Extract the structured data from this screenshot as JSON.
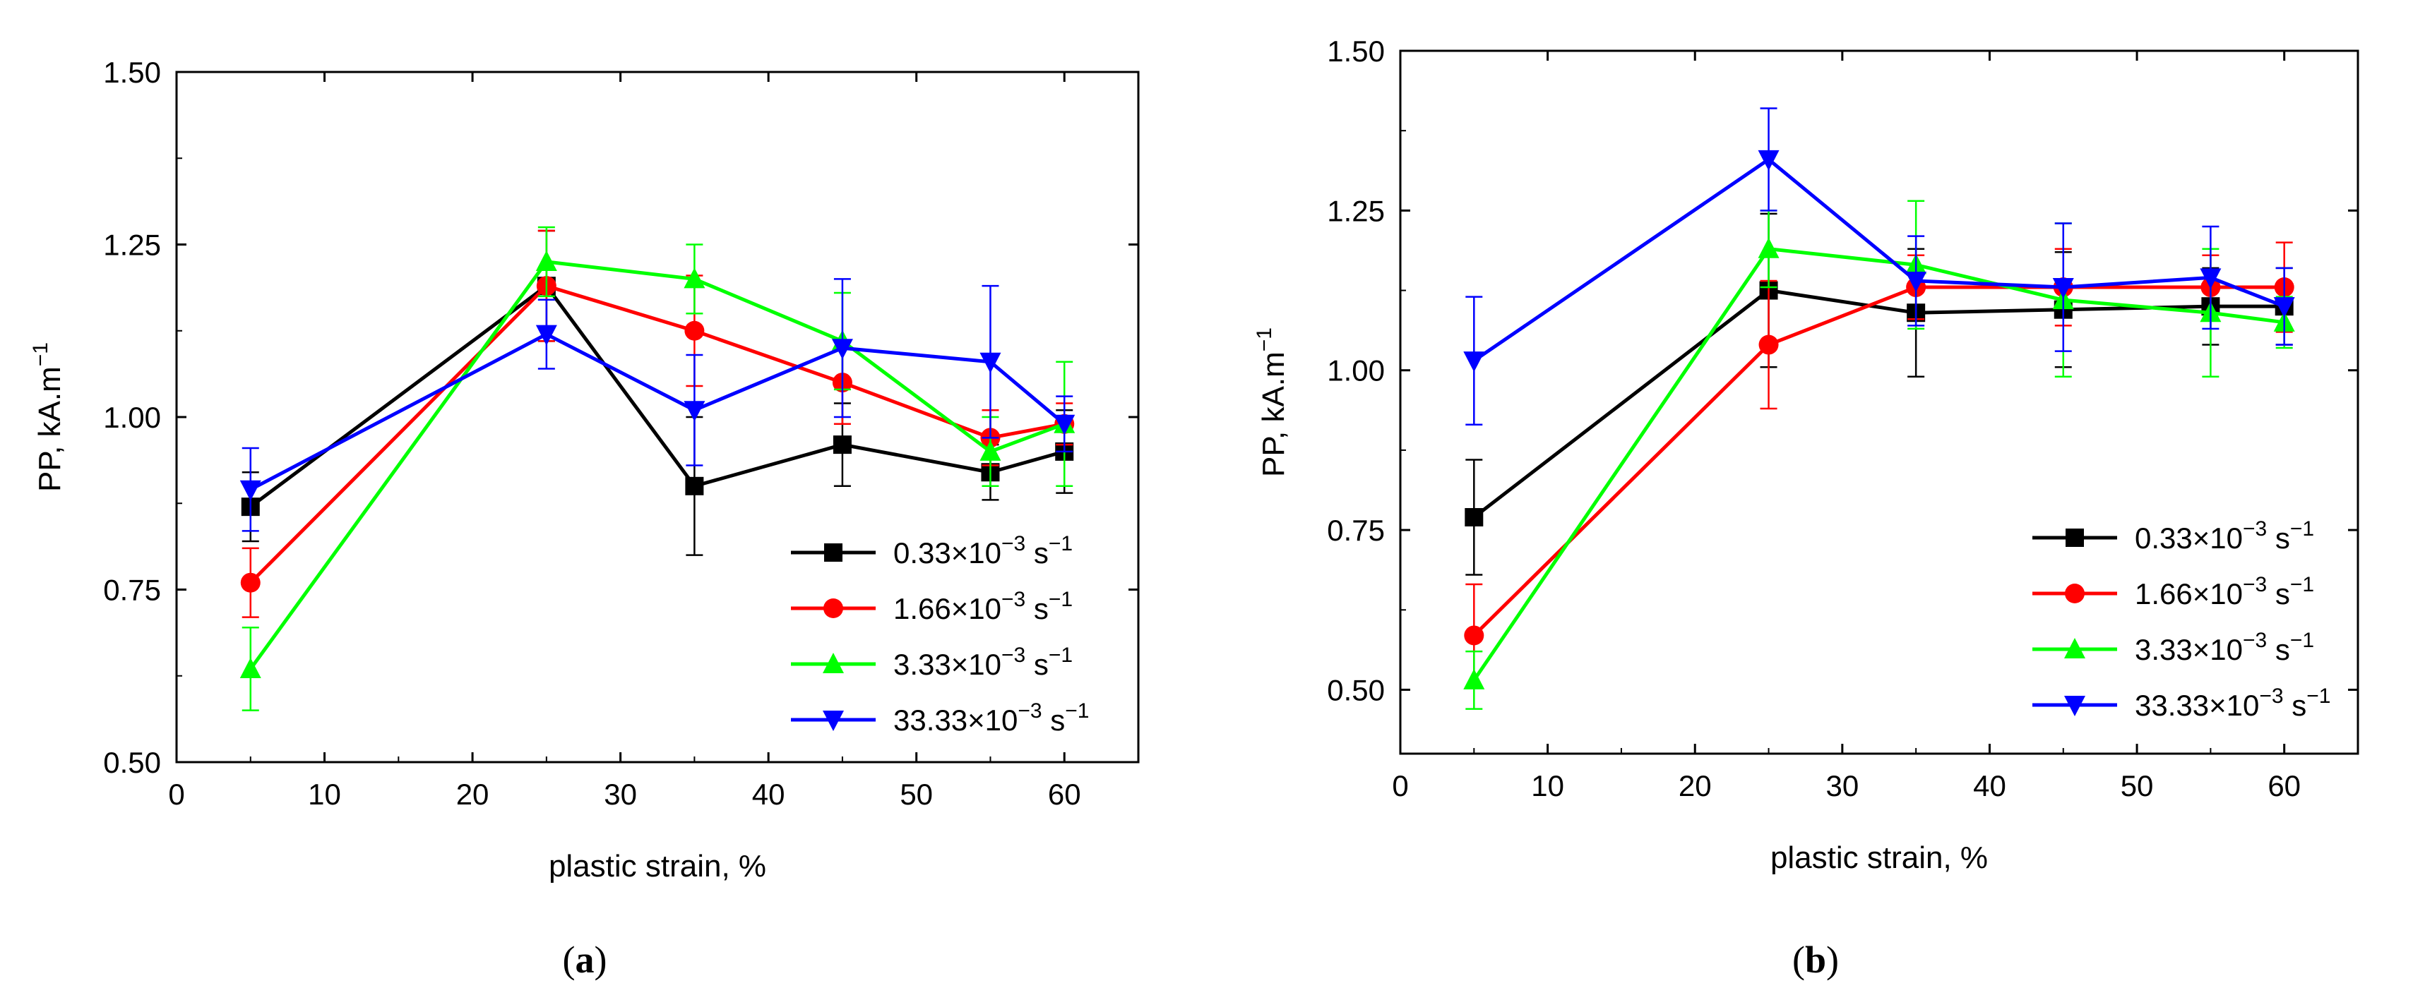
{
  "chart_data": [
    {
      "type": "line",
      "panel_label": "(a)",
      "panel_letter": "a",
      "xlabel": "plastic strain, %",
      "ylabel": "PP, kA.m",
      "ylabel_sup": "−1",
      "xlim": [
        0,
        65
      ],
      "ylim": [
        0.5,
        1.5
      ],
      "xticks": [
        "0",
        "10",
        "20",
        "30",
        "40",
        "50",
        "60"
      ],
      "yticks": [
        "0.50",
        "0.75",
        "1.00",
        "1.25",
        "1.50"
      ],
      "legend_position": "bottom-right",
      "series": [
        {
          "name": "0.33×10",
          "exp": "−3",
          "unit": "s",
          "unit_exp": "−1",
          "color": "#000000",
          "marker": "square",
          "x": [
            5,
            25,
            35,
            45,
            55,
            60
          ],
          "y": [
            0.87,
            1.19,
            0.9,
            0.96,
            0.92,
            0.95
          ],
          "err": [
            0.05,
            0.08,
            0.1,
            0.06,
            0.04,
            0.06
          ]
        },
        {
          "name": "1.66×10",
          "exp": "−3",
          "unit": "s",
          "unit_exp": "−1",
          "color": "#ff0000",
          "marker": "circle",
          "x": [
            5,
            25,
            35,
            45,
            55,
            60
          ],
          "y": [
            0.76,
            1.19,
            1.125,
            1.05,
            0.97,
            0.99
          ],
          "err": [
            0.05,
            0.08,
            0.08,
            0.06,
            0.04,
            0.03
          ]
        },
        {
          "name": "3.33×10",
          "exp": "−3",
          "unit": "s",
          "unit_exp": "−1",
          "color": "#00ff00",
          "marker": "triangle-up",
          "x": [
            5,
            25,
            35,
            45,
            55,
            60
          ],
          "y": [
            0.635,
            1.225,
            1.2,
            1.11,
            0.95,
            0.99
          ],
          "err": [
            0.06,
            0.05,
            0.05,
            0.07,
            0.05,
            0.09
          ]
        },
        {
          "name": "33.33×10",
          "exp": "−3",
          "unit": "s",
          "unit_exp": "−1",
          "color": "#0000ff",
          "marker": "triangle-down",
          "x": [
            5,
            25,
            35,
            45,
            55,
            60
          ],
          "y": [
            0.895,
            1.12,
            1.01,
            1.1,
            1.08,
            0.99
          ],
          "err": [
            0.06,
            0.05,
            0.08,
            0.1,
            0.11,
            0.04
          ]
        }
      ]
    },
    {
      "type": "line",
      "panel_label": "(b)",
      "panel_letter": "b",
      "xlabel": "plastic strain, %",
      "ylabel": "PP, kA.m",
      "ylabel_sup": "−1",
      "xlim": [
        0,
        65
      ],
      "ylim": [
        0.4,
        1.5
      ],
      "xticks": [
        "0",
        "10",
        "20",
        "30",
        "40",
        "50",
        "60"
      ],
      "yticks": [
        "0.50",
        "0.75",
        "1.00",
        "1.25",
        "1.50"
      ],
      "legend_position": "bottom-right",
      "series": [
        {
          "name": "0.33×10",
          "exp": "−3",
          "unit": "s",
          "unit_exp": "−1",
          "color": "#000000",
          "marker": "square",
          "x": [
            5,
            25,
            35,
            45,
            55,
            60
          ],
          "y": [
            0.77,
            1.125,
            1.09,
            1.095,
            1.1,
            1.1
          ],
          "err": [
            0.09,
            0.12,
            0.1,
            0.09,
            0.06,
            0.06
          ]
        },
        {
          "name": "1.66×10",
          "exp": "−3",
          "unit": "s",
          "unit_exp": "−1",
          "color": "#ff0000",
          "marker": "circle",
          "x": [
            5,
            25,
            35,
            45,
            55,
            60
          ],
          "y": [
            0.585,
            1.04,
            1.13,
            1.13,
            1.13,
            1.13
          ],
          "err": [
            0.08,
            0.1,
            0.05,
            0.06,
            0.05,
            0.07
          ]
        },
        {
          "name": "3.33×10",
          "exp": "−3",
          "unit": "s",
          "unit_exp": "−1",
          "color": "#00ff00",
          "marker": "triangle-up",
          "x": [
            5,
            25,
            35,
            45,
            55,
            60
          ],
          "y": [
            0.515,
            1.19,
            1.165,
            1.11,
            1.09,
            1.075
          ],
          "err": [
            0.045,
            0.06,
            0.1,
            0.12,
            0.1,
            0.04
          ]
        },
        {
          "name": "33.33×10",
          "exp": "−3",
          "unit": "s",
          "unit_exp": "−1",
          "color": "#0000ff",
          "marker": "triangle-down",
          "x": [
            5,
            25,
            35,
            45,
            55,
            60
          ],
          "y": [
            1.015,
            1.33,
            1.14,
            1.13,
            1.145,
            1.1
          ],
          "err": [
            0.1,
            0.08,
            0.07,
            0.1,
            0.08,
            0.06
          ]
        }
      ]
    }
  ]
}
